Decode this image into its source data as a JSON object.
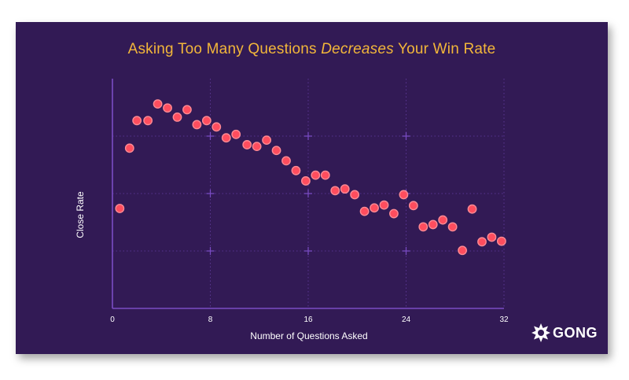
{
  "brand": {
    "logo_text": "GONG"
  },
  "colors": {
    "background": "#321a55",
    "title": "#f2b63a",
    "axis": "#7a4cc4",
    "point_fill": "#ff4d5e",
    "point_stroke": "#ff8a94"
  },
  "chart_data": {
    "type": "scatter",
    "title_parts": [
      "Asking Too Many Questions ",
      "Decreases",
      " Your Win Rate"
    ],
    "xlabel": "Number of Questions Asked",
    "ylabel": "Close Rate",
    "xlim": [
      0,
      32
    ],
    "ylim": [
      0,
      4
    ],
    "xticks": [
      0,
      8,
      16,
      24,
      32
    ],
    "xtick_labels": [
      "0",
      "8",
      "16",
      "24",
      "32"
    ],
    "y_ticks_labeled": false,
    "grid": "dotted",
    "points": [
      {
        "x": 0.6,
        "y": 1.74
      },
      {
        "x": 1.4,
        "y": 2.79
      },
      {
        "x": 2.0,
        "y": 3.27
      },
      {
        "x": 2.9,
        "y": 3.27
      },
      {
        "x": 3.7,
        "y": 3.56
      },
      {
        "x": 4.5,
        "y": 3.49
      },
      {
        "x": 5.3,
        "y": 3.33
      },
      {
        "x": 6.1,
        "y": 3.46
      },
      {
        "x": 6.9,
        "y": 3.2
      },
      {
        "x": 7.7,
        "y": 3.27
      },
      {
        "x": 8.5,
        "y": 3.16
      },
      {
        "x": 9.3,
        "y": 2.97
      },
      {
        "x": 10.1,
        "y": 3.03
      },
      {
        "x": 11.0,
        "y": 2.85
      },
      {
        "x": 11.8,
        "y": 2.82
      },
      {
        "x": 12.6,
        "y": 2.93
      },
      {
        "x": 13.4,
        "y": 2.75
      },
      {
        "x": 14.2,
        "y": 2.57
      },
      {
        "x": 15.0,
        "y": 2.4
      },
      {
        "x": 15.8,
        "y": 2.22
      },
      {
        "x": 16.6,
        "y": 2.32
      },
      {
        "x": 17.4,
        "y": 2.32
      },
      {
        "x": 18.2,
        "y": 2.05
      },
      {
        "x": 19.0,
        "y": 2.08
      },
      {
        "x": 19.8,
        "y": 1.98
      },
      {
        "x": 20.6,
        "y": 1.69
      },
      {
        "x": 21.4,
        "y": 1.75
      },
      {
        "x": 22.2,
        "y": 1.8
      },
      {
        "x": 23.0,
        "y": 1.65
      },
      {
        "x": 23.8,
        "y": 1.98
      },
      {
        "x": 24.6,
        "y": 1.79
      },
      {
        "x": 25.4,
        "y": 1.42
      },
      {
        "x": 26.2,
        "y": 1.46
      },
      {
        "x": 27.0,
        "y": 1.54
      },
      {
        "x": 27.8,
        "y": 1.42
      },
      {
        "x": 28.6,
        "y": 1.01
      },
      {
        "x": 29.4,
        "y": 1.73
      },
      {
        "x": 30.2,
        "y": 1.16
      },
      {
        "x": 31.0,
        "y": 1.24
      },
      {
        "x": 31.8,
        "y": 1.17
      }
    ]
  }
}
